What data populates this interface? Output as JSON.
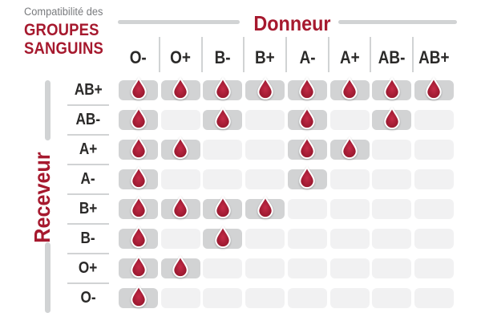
{
  "title": {
    "line1": "Compatibilité des",
    "line2": "GROUPES",
    "line3": "SANGUINS"
  },
  "axes": {
    "donor_label": "Donneur",
    "recipient_label": "Receveur"
  },
  "icons": {
    "cell_icon": "blood-drop-icon"
  },
  "colors": {
    "accent_red": "#a6192e",
    "drop_highlight": "#c42b47",
    "drop_base": "#a41d35",
    "drop_edge": "#8e1528",
    "cell_compatible": "#d2d3d4",
    "cell_incompatible": "#f1f1f2",
    "separator": "#d1d3d4",
    "label_dark": "#2b2a29",
    "subtitle_gray": "#797b7e"
  },
  "chart_data": {
    "type": "heatmap",
    "title": "Compatibilité des groupes sanguins",
    "x_label": "Donneur",
    "y_label": "Receveur",
    "columns": [
      "O-",
      "O+",
      "B-",
      "B+",
      "A-",
      "A+",
      "AB-",
      "AB+"
    ],
    "rows": [
      "AB+",
      "AB-",
      "A+",
      "A-",
      "B+",
      "B-",
      "O+",
      "O-"
    ],
    "matrix": [
      [
        1,
        1,
        1,
        1,
        1,
        1,
        1,
        1
      ],
      [
        1,
        0,
        1,
        0,
        1,
        0,
        1,
        0
      ],
      [
        1,
        1,
        0,
        0,
        1,
        1,
        0,
        0
      ],
      [
        1,
        0,
        0,
        0,
        1,
        0,
        0,
        0
      ],
      [
        1,
        1,
        1,
        1,
        0,
        0,
        0,
        0
      ],
      [
        1,
        0,
        1,
        0,
        0,
        0,
        0,
        0
      ],
      [
        1,
        1,
        0,
        0,
        0,
        0,
        0,
        0
      ],
      [
        1,
        0,
        0,
        0,
        0,
        0,
        0,
        0
      ]
    ],
    "cell_true_marker": "blood-drop-icon",
    "cell_false_marker": "empty-gray-cell",
    "legend_position": "none",
    "grid": false
  }
}
